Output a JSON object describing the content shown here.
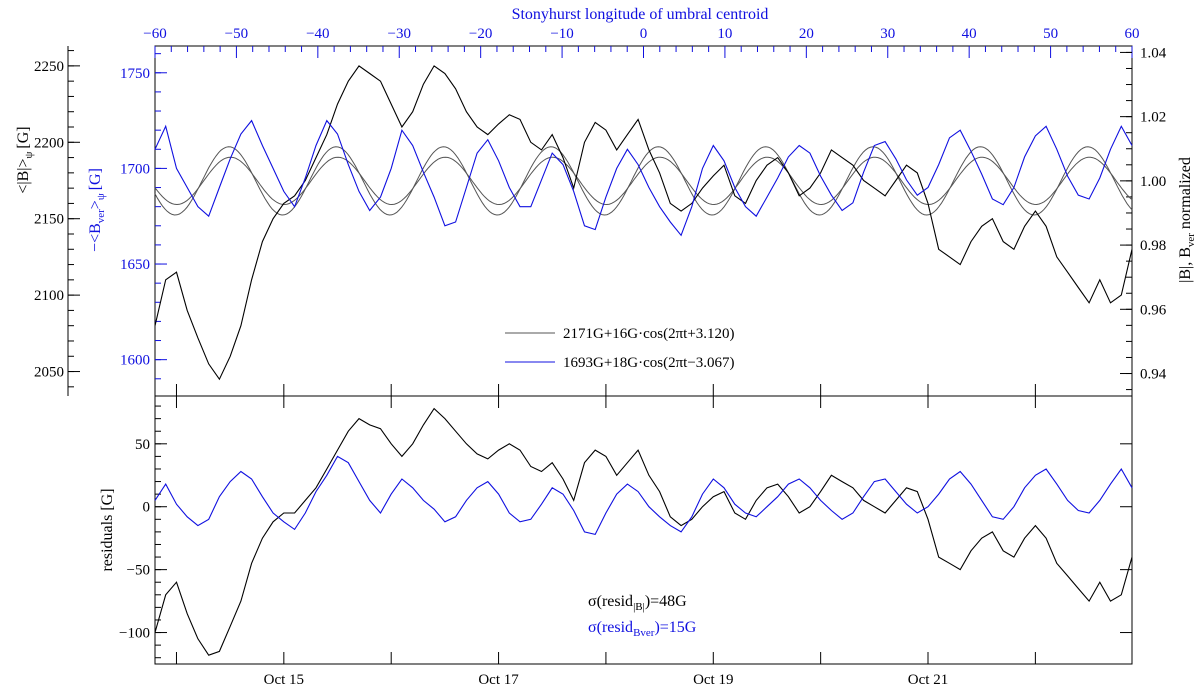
{
  "colors": {
    "black_series": "#000000",
    "blue_series": "#1010e0",
    "fit_line": "#555555"
  },
  "chart_data": [
    {
      "type": "line",
      "panel": "top",
      "top_axis": {
        "title": "Stonyhurst longitude of umbral centroid",
        "ticks": [
          "−60",
          "−50",
          "−40",
          "−30",
          "−20",
          "−10",
          "0",
          "10",
          "20",
          "30",
          "40",
          "50",
          "60"
        ],
        "range": [
          -60,
          60
        ]
      },
      "x_ticks": [
        "Oct 15",
        "Oct 17",
        "Oct 19",
        "Oct 21"
      ],
      "x_range_days": [
        13.8,
        22.9
      ],
      "left_outer_axis": {
        "label": "<|B|>",
        "label_sub": "ψ",
        "label_unit": "[G]",
        "ticks": [
          "2050",
          "2100",
          "2150",
          "2200",
          "2250"
        ],
        "range": [
          2034,
          2263
        ]
      },
      "left_inner_axis": {
        "label": "−<B",
        "label_sub": "ver",
        "label_close": ">",
        "label_sub2": "ψ",
        "label_unit": "[G]",
        "ticks": [
          "1600",
          "1650",
          "1700",
          "1750"
        ],
        "range": [
          1581,
          1764
        ]
      },
      "right_axis": {
        "label": "|B|, B",
        "label_sub": "ver",
        "label_tail": " normalized",
        "ticks": [
          "0.94",
          "0.96",
          "0.98",
          "1.00",
          "1.02",
          "1.04"
        ],
        "range": [
          0.933,
          1.042
        ]
      },
      "legend": [
        {
          "text": "2171G+16G·cos(2πt+3.120)",
          "color": "#000000"
        },
        {
          "text": "1693G+18G·cos(2πt−3.067)",
          "color": "#1010e0"
        }
      ],
      "series": [
        {
          "axis": "left_outer",
          "color": "#000000",
          "x": [
            13.8,
            13.9,
            14.0,
            14.1,
            14.2,
            14.3,
            14.4,
            14.5,
            14.6,
            14.7,
            14.8,
            14.9,
            15.0,
            15.1,
            15.2,
            15.3,
            15.4,
            15.5,
            15.6,
            15.7,
            15.8,
            15.9,
            16.0,
            16.1,
            16.2,
            16.3,
            16.4,
            16.5,
            16.6,
            16.7,
            16.8,
            16.9,
            17.0,
            17.1,
            17.2,
            17.3,
            17.4,
            17.5,
            17.6,
            17.7,
            17.8,
            17.9,
            18.0,
            18.1,
            18.2,
            18.3,
            18.4,
            18.5,
            18.6,
            18.7,
            18.8,
            18.9,
            19.0,
            19.1,
            19.2,
            19.3,
            19.4,
            19.5,
            19.6,
            19.7,
            19.8,
            19.9,
            20.0,
            20.1,
            20.2,
            20.3,
            20.4,
            20.5,
            20.6,
            20.7,
            20.8,
            20.9,
            21.0,
            21.1,
            21.2,
            21.3,
            21.4,
            21.5,
            21.6,
            21.7,
            21.8,
            21.9,
            22.0,
            22.1,
            22.2,
            22.3,
            22.4,
            22.5,
            22.6,
            22.7,
            22.8,
            22.9
          ],
          "y": [
            2080,
            2110,
            2115,
            2090,
            2072,
            2055,
            2045,
            2060,
            2080,
            2110,
            2135,
            2150,
            2160,
            2165,
            2175,
            2190,
            2205,
            2225,
            2240,
            2250,
            2245,
            2240,
            2225,
            2210,
            2220,
            2238,
            2250,
            2245,
            2235,
            2220,
            2210,
            2205,
            2212,
            2218,
            2215,
            2200,
            2195,
            2205,
            2190,
            2170,
            2200,
            2213,
            2208,
            2195,
            2205,
            2215,
            2195,
            2180,
            2160,
            2155,
            2160,
            2170,
            2178,
            2185,
            2165,
            2160,
            2175,
            2185,
            2190,
            2180,
            2165,
            2170,
            2180,
            2195,
            2190,
            2185,
            2175,
            2170,
            2165,
            2175,
            2185,
            2180,
            2160,
            2130,
            2125,
            2120,
            2135,
            2145,
            2150,
            2135,
            2130,
            2145,
            2155,
            2145,
            2125,
            2115,
            2105,
            2095,
            2110,
            2095,
            2100,
            2130
          ]
        },
        {
          "axis": "left_inner",
          "color": "#1010e0",
          "x": [
            13.8,
            13.9,
            14.0,
            14.1,
            14.2,
            14.3,
            14.4,
            14.5,
            14.6,
            14.7,
            14.8,
            14.9,
            15.0,
            15.1,
            15.2,
            15.3,
            15.4,
            15.5,
            15.6,
            15.7,
            15.8,
            15.9,
            16.0,
            16.1,
            16.2,
            16.3,
            16.4,
            16.5,
            16.6,
            16.7,
            16.8,
            16.9,
            17.0,
            17.1,
            17.2,
            17.3,
            17.4,
            17.5,
            17.6,
            17.7,
            17.8,
            17.9,
            18.0,
            18.1,
            18.2,
            18.3,
            18.4,
            18.5,
            18.6,
            18.7,
            18.8,
            18.9,
            19.0,
            19.1,
            19.2,
            19.3,
            19.4,
            19.5,
            19.6,
            19.7,
            19.8,
            19.9,
            20.0,
            20.1,
            20.2,
            20.3,
            20.4,
            20.5,
            20.6,
            20.7,
            20.8,
            20.9,
            21.0,
            21.1,
            21.2,
            21.3,
            21.4,
            21.5,
            21.6,
            21.7,
            21.8,
            21.9,
            22.0,
            22.1,
            22.2,
            22.3,
            22.4,
            22.5,
            22.6,
            22.7,
            22.8,
            22.9
          ],
          "y": [
            1710,
            1722,
            1700,
            1690,
            1680,
            1675,
            1690,
            1705,
            1718,
            1725,
            1712,
            1700,
            1688,
            1680,
            1695,
            1712,
            1725,
            1718,
            1702,
            1688,
            1678,
            1685,
            1700,
            1720,
            1712,
            1698,
            1685,
            1670,
            1672,
            1690,
            1708,
            1715,
            1704,
            1690,
            1680,
            1680,
            1694,
            1708,
            1702,
            1688,
            1670,
            1668,
            1685,
            1700,
            1710,
            1702,
            1690,
            1680,
            1672,
            1665,
            1680,
            1700,
            1712,
            1704,
            1690,
            1680,
            1675,
            1685,
            1695,
            1706,
            1712,
            1708,
            1696,
            1686,
            1678,
            1682,
            1698,
            1712,
            1714,
            1705,
            1694,
            1686,
            1690,
            1702,
            1716,
            1720,
            1709,
            1697,
            1684,
            1681,
            1690,
            1706,
            1717,
            1722,
            1710,
            1696,
            1686,
            1684,
            1695,
            1710,
            1722,
            1712
          ]
        }
      ],
      "fits": [
        {
          "axis": "right",
          "mean": 1.0,
          "amp": 0.00737,
          "phase": 3.12,
          "color": "#555555"
        },
        {
          "axis": "right",
          "mean": 1.0,
          "amp": 0.01063,
          "phase": -3.067,
          "color": "#555555"
        }
      ]
    },
    {
      "type": "line",
      "panel": "bottom",
      "ylabel": "residuals [G]",
      "y_ticks": [
        "−100",
        "−50",
        "0",
        "50"
      ],
      "y_range": [
        -125,
        88
      ],
      "x_ticks": [
        "Oct 15",
        "Oct 17",
        "Oct 19",
        "Oct 21"
      ],
      "x_range_days": [
        13.8,
        22.9
      ],
      "annotation": [
        {
          "prefix": "σ(resid",
          "sub": "|B|",
          "suffix": ")=48G",
          "color": "#000000"
        },
        {
          "prefix": "σ(resid",
          "sub": "Bver",
          "suffix": ")=15G",
          "color": "#1010e0"
        }
      ],
      "series": [
        {
          "color": "#000000",
          "x": [
            13.8,
            13.9,
            14.0,
            14.1,
            14.2,
            14.3,
            14.4,
            14.5,
            14.6,
            14.7,
            14.8,
            14.9,
            15.0,
            15.1,
            15.2,
            15.3,
            15.4,
            15.5,
            15.6,
            15.7,
            15.8,
            15.9,
            16.0,
            16.1,
            16.2,
            16.3,
            16.4,
            16.5,
            16.6,
            16.7,
            16.8,
            16.9,
            17.0,
            17.1,
            17.2,
            17.3,
            17.4,
            17.5,
            17.6,
            17.7,
            17.8,
            17.9,
            18.0,
            18.1,
            18.2,
            18.3,
            18.4,
            18.5,
            18.6,
            18.7,
            18.8,
            18.9,
            19.0,
            19.1,
            19.2,
            19.3,
            19.4,
            19.5,
            19.6,
            19.7,
            19.8,
            19.9,
            20.0,
            20.1,
            20.2,
            20.3,
            20.4,
            20.5,
            20.6,
            20.7,
            20.8,
            20.9,
            21.0,
            21.1,
            21.2,
            21.3,
            21.4,
            21.5,
            21.6,
            21.7,
            21.8,
            21.9,
            22.0,
            22.1,
            22.2,
            22.3,
            22.4,
            22.5,
            22.6,
            22.7,
            22.8,
            22.9
          ],
          "y": [
            -100,
            -70,
            -60,
            -85,
            -105,
            -118,
            -115,
            -95,
            -75,
            -45,
            -25,
            -12,
            -5,
            -5,
            5,
            15,
            30,
            45,
            60,
            70,
            65,
            62,
            50,
            40,
            50,
            65,
            78,
            70,
            60,
            50,
            42,
            38,
            45,
            50,
            45,
            32,
            28,
            35,
            22,
            5,
            35,
            45,
            40,
            25,
            35,
            45,
            25,
            12,
            -8,
            -15,
            -10,
            0,
            8,
            12,
            -5,
            -10,
            5,
            15,
            18,
            8,
            -5,
            0,
            12,
            25,
            20,
            15,
            5,
            0,
            -5,
            5,
            15,
            12,
            -10,
            -40,
            -45,
            -50,
            -35,
            -25,
            -20,
            -35,
            -40,
            -25,
            -15,
            -25,
            -45,
            -55,
            -65,
            -75,
            -60,
            -75,
            -70,
            -40
          ]
        },
        {
          "color": "#1010e0",
          "x": [
            13.8,
            13.9,
            14.0,
            14.1,
            14.2,
            14.3,
            14.4,
            14.5,
            14.6,
            14.7,
            14.8,
            14.9,
            15.0,
            15.1,
            15.2,
            15.3,
            15.4,
            15.5,
            15.6,
            15.7,
            15.8,
            15.9,
            16.0,
            16.1,
            16.2,
            16.3,
            16.4,
            16.5,
            16.6,
            16.7,
            16.8,
            16.9,
            17.0,
            17.1,
            17.2,
            17.3,
            17.4,
            17.5,
            17.6,
            17.7,
            17.8,
            17.9,
            18.0,
            18.1,
            18.2,
            18.3,
            18.4,
            18.5,
            18.6,
            18.7,
            18.8,
            18.9,
            19.0,
            19.1,
            19.2,
            19.3,
            19.4,
            19.5,
            19.6,
            19.7,
            19.8,
            19.9,
            20.0,
            20.1,
            20.2,
            20.3,
            20.4,
            20.5,
            20.6,
            20.7,
            20.8,
            20.9,
            21.0,
            21.1,
            21.2,
            21.3,
            21.4,
            21.5,
            21.6,
            21.7,
            21.8,
            21.9,
            22.0,
            22.1,
            22.2,
            22.3,
            22.4,
            22.5,
            22.6,
            22.7,
            22.8,
            22.9
          ],
          "y": [
            5,
            18,
            2,
            -8,
            -15,
            -10,
            8,
            20,
            28,
            22,
            8,
            -5,
            -12,
            -18,
            -5,
            12,
            25,
            40,
            35,
            20,
            5,
            -5,
            10,
            22,
            15,
            5,
            -2,
            -12,
            -8,
            5,
            15,
            20,
            10,
            -5,
            -12,
            -10,
            2,
            15,
            10,
            -3,
            -20,
            -22,
            -5,
            10,
            18,
            12,
            0,
            -8,
            -15,
            -20,
            -8,
            10,
            22,
            15,
            2,
            -5,
            -8,
            0,
            8,
            18,
            22,
            15,
            5,
            -3,
            -10,
            -5,
            8,
            20,
            22,
            12,
            2,
            -5,
            0,
            10,
            22,
            28,
            18,
            5,
            -8,
            -10,
            0,
            15,
            25,
            30,
            18,
            5,
            -3,
            -5,
            5,
            18,
            30,
            15
          ]
        }
      ]
    }
  ]
}
